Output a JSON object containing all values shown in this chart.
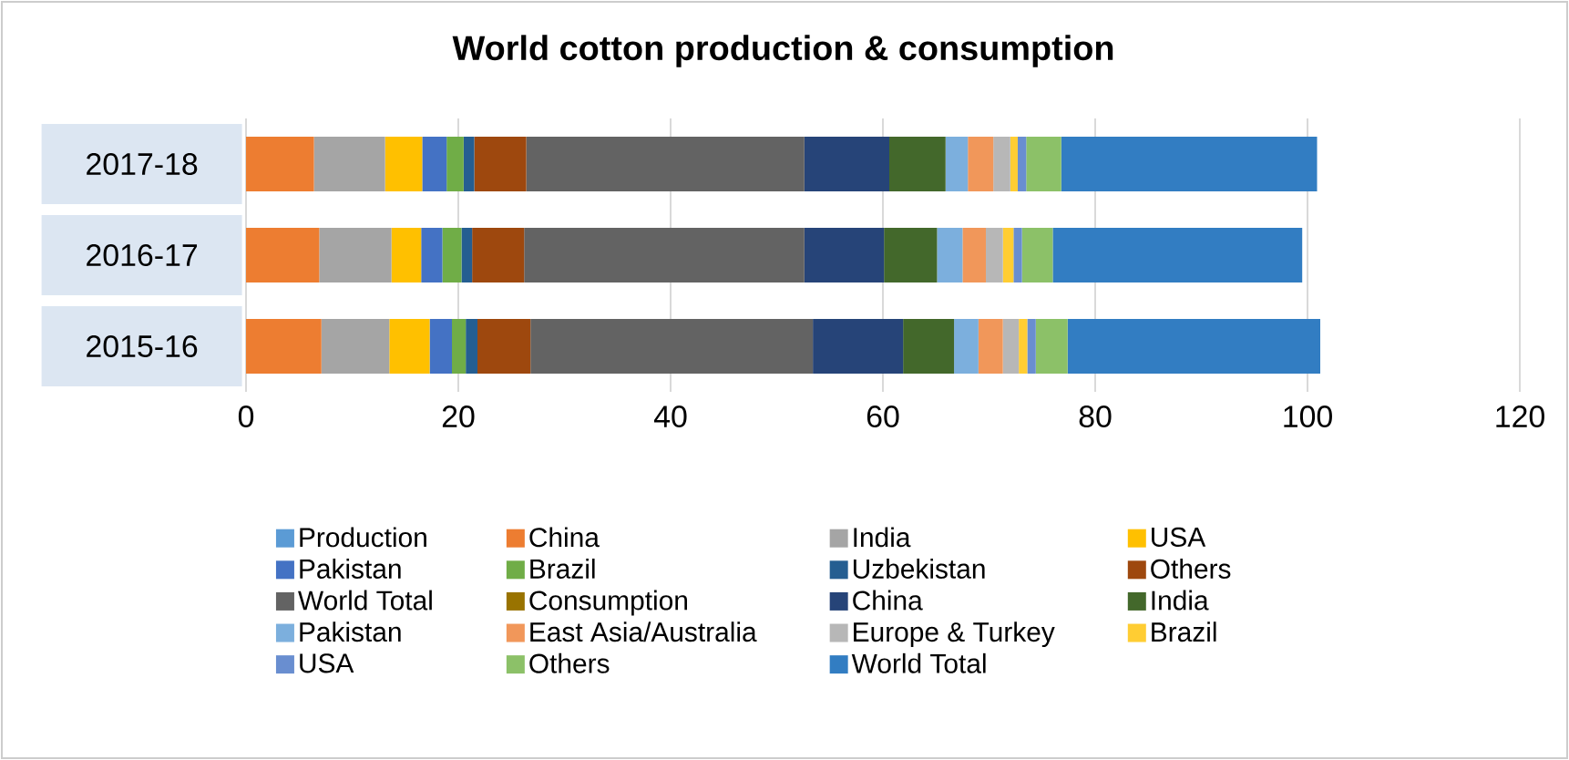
{
  "chart_data": {
    "type": "bar",
    "orientation": "horizontal",
    "stacked": true,
    "title": "World cotton production & consumption",
    "categories": [
      "2017-18",
      "2016-17",
      "2015-16"
    ],
    "xlim": [
      0,
      120
    ],
    "xticks": [
      0,
      20,
      40,
      60,
      80,
      100,
      120
    ],
    "grid": "x",
    "legend": "bottom",
    "series": [
      {
        "name": "Production",
        "color": "#5b9bd5",
        "values": [
          0,
          0,
          0
        ]
      },
      {
        "name": "China",
        "color": "#ed7d31",
        "values": [
          6.4,
          6.9,
          7.1
        ]
      },
      {
        "name": "India",
        "color": "#a5a5a5",
        "values": [
          6.7,
          6.8,
          6.4
        ]
      },
      {
        "name": "USA",
        "color": "#ffc000",
        "values": [
          3.5,
          2.8,
          3.8
        ]
      },
      {
        "name": "Pakistan",
        "color": "#4472c4",
        "values": [
          2.3,
          2.0,
          2.1
        ]
      },
      {
        "name": "Brazil",
        "color": "#70ad47",
        "values": [
          1.6,
          1.8,
          1.3
        ]
      },
      {
        "name": "Uzbekistan",
        "color": "#255e91",
        "values": [
          1.0,
          1.0,
          1.1
        ]
      },
      {
        "name": "Others",
        "color": "#9e480e",
        "values": [
          4.9,
          4.9,
          5.0
        ]
      },
      {
        "name": "World Total",
        "color": "#636363",
        "values": [
          26.2,
          26.4,
          26.6
        ]
      },
      {
        "name": "Consumption",
        "color": "#997300",
        "values": [
          0,
          0,
          0
        ]
      },
      {
        "name": "China",
        "color": "#264478",
        "values": [
          8.0,
          7.5,
          8.5
        ]
      },
      {
        "name": "India",
        "color": "#43682b",
        "values": [
          5.3,
          5.0,
          4.8
        ]
      },
      {
        "name": "Pakistan",
        "color": "#7cafdd",
        "values": [
          2.1,
          2.4,
          2.3
        ]
      },
      {
        "name": "East Asia/Australia",
        "color": "#f1975a",
        "values": [
          2.4,
          2.2,
          2.3
        ]
      },
      {
        "name": "Europe & Turkey",
        "color": "#b7b7b7",
        "values": [
          1.6,
          1.6,
          1.5
        ]
      },
      {
        "name": "Brazil",
        "color": "#ffcd33",
        "values": [
          0.7,
          1.0,
          0.8
        ]
      },
      {
        "name": "USA",
        "color": "#698ed0",
        "values": [
          0.8,
          0.8,
          0.8
        ]
      },
      {
        "name": "Others",
        "color": "#8cc168",
        "values": [
          3.3,
          2.9,
          3.0
        ]
      },
      {
        "name": "World Total",
        "color": "#327dc2",
        "values": [
          24.1,
          23.5,
          23.8
        ]
      }
    ]
  }
}
